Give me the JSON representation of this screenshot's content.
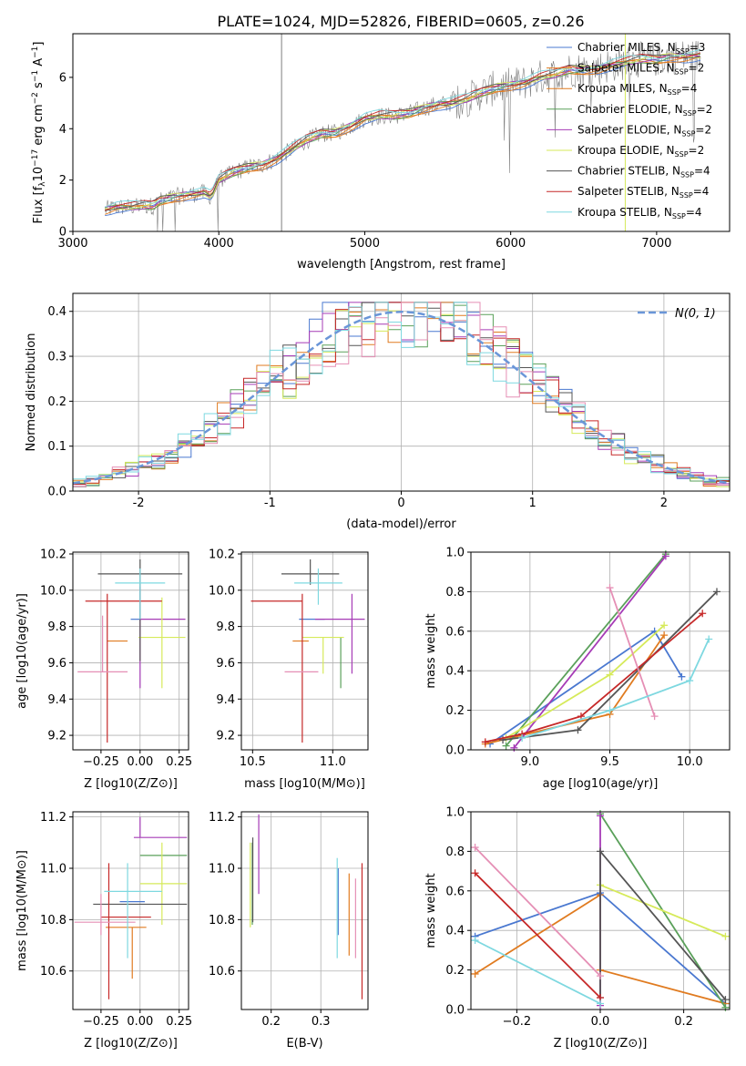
{
  "figure": {
    "title": "PLATE=1024, MJD=52826, FIBERID=0605, z=0.26"
  },
  "model_colors": [
    "#4a78d0",
    "#e07b20",
    "#5aa05a",
    "#a63bb6",
    "#d6ea5a",
    "#555555",
    "#c62828",
    "#e58fb5",
    "#7ed8e0"
  ],
  "chart_data": [
    {
      "id": "spectrum",
      "type": "line",
      "xlabel": "wavelength [Angstrom, rest frame]",
      "ylabel": "Flux [f$_\\lambda$10$^{-17}$ erg cm$^{-2}$ s$^{-1}$ A$^{-1}$]",
      "ylabel_parts": {
        "a": "Flux [f",
        "b": "λ",
        "c": "10",
        "d": "−17",
        "e": " erg cm",
        "f": "−2",
        "g": " s",
        "h": "−1",
        "i": " A",
        "j": "−1",
        "k": "]"
      },
      "xlim": [
        3000,
        7500
      ],
      "ylim": [
        0,
        7.7
      ],
      "xticks": [
        3000,
        4000,
        5000,
        6000,
        7000
      ],
      "yticks": [
        0,
        2,
        4,
        6
      ],
      "grid": false,
      "legend_position": "top-right",
      "legend": [
        {
          "label": "Chabrier MILES, N",
          "n": "3",
          "color": "#4a78d0"
        },
        {
          "label": "Salpeter MILES, N",
          "n": "2",
          "color": "#e07b20"
        },
        {
          "label": "Kroupa MILES, N",
          "n": "4",
          "color": "#e07b20"
        },
        {
          "label": "Chabrier ELODIE, N",
          "n": "2",
          "color": "#5aa05a"
        },
        {
          "label": "Salpeter ELODIE, N",
          "n": "2",
          "color": "#a63bb6"
        },
        {
          "label": "Kroupa ELODIE, N",
          "n": "2",
          "color": "#d6ea5a"
        },
        {
          "label": "Chabrier STELIB, N",
          "n": "4",
          "color": "#555555"
        },
        {
          "label": "Salpeter STELIB, N",
          "n": "4",
          "color": "#c62828"
        },
        {
          "label": "Kroupa STELIB, N",
          "n": "4",
          "color": "#7ed8e0"
        }
      ],
      "legend_sub": "SSP",
      "data_curve": {
        "x": [
          3220,
          3300,
          3400,
          3500,
          3550,
          3600,
          3700,
          3800,
          3900,
          3950,
          4000,
          4100,
          4200,
          4300,
          4400,
          4500,
          4600,
          4700,
          4800,
          4900,
          5000,
          5100,
          5200,
          5300,
          5400,
          5500,
          5600,
          5700,
          5800,
          5900,
          6000,
          6100,
          6200,
          6300,
          6400,
          6500,
          6600,
          6700,
          6800,
          6900,
          7000,
          7100,
          7200,
          7300
        ],
        "y": [
          0.85,
          0.95,
          0.95,
          1.0,
          1.0,
          1.2,
          1.35,
          1.45,
          1.5,
          1.35,
          2.0,
          2.3,
          2.5,
          2.6,
          2.85,
          3.2,
          3.55,
          3.8,
          3.85,
          4.1,
          4.4,
          4.5,
          4.5,
          4.6,
          4.8,
          4.95,
          5.0,
          5.15,
          5.4,
          5.6,
          5.7,
          5.8,
          6.0,
          6.1,
          6.3,
          6.3,
          6.35,
          6.5,
          6.6,
          6.7,
          6.7,
          6.8,
          6.8,
          6.85
        ]
      }
    },
    {
      "id": "residuals",
      "type": "line",
      "xlabel": "(data-model)/error",
      "ylabel": "Normed distribution",
      "xlim": [
        -2.5,
        2.5
      ],
      "ylim": [
        0,
        0.44
      ],
      "xticks": [
        -2,
        -1,
        0,
        1,
        2
      ],
      "yticks": [
        0.0,
        0.1,
        0.2,
        0.3,
        0.4
      ],
      "grid": true,
      "legend_position": "top-right",
      "legend_label": "N(0, 1)",
      "gaussian": {
        "mu": 0,
        "sigma": 1,
        "color": "#6a96d8"
      }
    },
    {
      "id": "z_age",
      "type": "scatter",
      "xlabel": "Z [log10(Z/Z⊙)]",
      "ylabel": "age [log10(age/yr)]",
      "xlim": [
        -0.43,
        0.31
      ],
      "ylim": [
        9.12,
        10.21
      ],
      "xticks": [
        -0.25,
        0.0,
        0.25
      ],
      "xtick_labels": [
        "−0.25",
        "0.00",
        "0.25"
      ],
      "yticks": [
        9.2,
        9.4,
        9.6,
        9.8,
        10.0,
        10.2
      ],
      "grid": true,
      "points": [
        {
          "x": 0.0,
          "y": 9.84,
          "xerr": [
            0.06,
            0.0
          ],
          "yerr": [
            0.0,
            0.0
          ],
          "color": "#4a78d0"
        },
        {
          "x": -0.15,
          "y": 9.72,
          "xerr": [
            0.06,
            0.07
          ],
          "yerr": [
            0.0,
            0.0
          ],
          "color": "#e07b20"
        },
        {
          "x": -0.05,
          "y": 9.84,
          "xerr": [
            0.0,
            0.0
          ],
          "yerr": [
            0.0,
            0.0
          ],
          "color": "#5aa05a"
        },
        {
          "x": 0.0,
          "y": 9.84,
          "xerr": [
            0.0,
            0.29
          ],
          "yerr": [
            0.38,
            0.18
          ],
          "color": "#a63bb6"
        },
        {
          "x": 0.14,
          "y": 9.74,
          "xerr": [
            0.15,
            0.15
          ],
          "yerr": [
            0.28,
            0.22
          ],
          "color": "#d6ea5a"
        },
        {
          "x": 0.0,
          "y": 10.09,
          "xerr": [
            0.27,
            0.27
          ],
          "yerr": [
            0.48,
            0.08
          ],
          "color": "#555555"
        },
        {
          "x": -0.21,
          "y": 9.94,
          "xerr": [
            0.14,
            0.35
          ],
          "yerr": [
            0.78,
            0.04
          ],
          "color": "#c62828"
        },
        {
          "x": -0.24,
          "y": 9.55,
          "xerr": [
            0.16,
            0.16
          ],
          "yerr": [
            0.0,
            0.31
          ],
          "color": "#e58fb5"
        },
        {
          "x": 0.0,
          "y": 10.04,
          "xerr": [
            0.16,
            0.16
          ],
          "yerr": [
            0.2,
            0.08
          ],
          "color": "#7ed8e0"
        }
      ]
    },
    {
      "id": "mass_age",
      "type": "scatter",
      "xlabel": "mass [log10(M/M⊙)]",
      "ylabel": "",
      "xlim": [
        10.43,
        11.22
      ],
      "ylim": [
        9.12,
        10.21
      ],
      "xticks": [
        10.5,
        11.0
      ],
      "xtick_labels": [
        "10.5",
        "11.0"
      ],
      "yticks": [
        9.2,
        9.4,
        9.6,
        9.8,
        10.0,
        10.2
      ],
      "grid": true,
      "points": [
        {
          "x": 10.87,
          "y": 9.84,
          "xerr": [
            0.08,
            0.08
          ],
          "yerr": [
            0.0,
            0.0
          ],
          "color": "#4a78d0"
        },
        {
          "x": 10.8,
          "y": 9.72,
          "xerr": [
            0.05,
            0.05
          ],
          "yerr": [
            0.0,
            0.0
          ],
          "color": "#e07b20"
        },
        {
          "x": 11.05,
          "y": 9.74,
          "xerr": [
            0.0,
            0.0
          ],
          "yerr": [
            0.28,
            0.0
          ],
          "color": "#5aa05a"
        },
        {
          "x": 11.12,
          "y": 9.84,
          "xerr": [
            0.23,
            0.08
          ],
          "yerr": [
            0.3,
            0.14
          ],
          "color": "#a63bb6"
        },
        {
          "x": 10.94,
          "y": 9.74,
          "xerr": [
            0.13,
            0.13
          ],
          "yerr": [
            0.2,
            0.0
          ],
          "color": "#d6ea5a"
        },
        {
          "x": 10.86,
          "y": 10.09,
          "xerr": [
            0.18,
            0.18
          ],
          "yerr": [
            0.06,
            0.08
          ],
          "color": "#555555"
        },
        {
          "x": 10.81,
          "y": 9.94,
          "xerr": [
            0.32,
            0.0
          ],
          "yerr": [
            0.78,
            0.04
          ],
          "color": "#c62828"
        },
        {
          "x": 10.77,
          "y": 9.55,
          "xerr": [
            0.07,
            0.14
          ],
          "yerr": [
            0.0,
            0.0
          ],
          "color": "#e58fb5"
        },
        {
          "x": 10.91,
          "y": 10.04,
          "xerr": [
            0.15,
            0.15
          ],
          "yerr": [
            0.12,
            0.08
          ],
          "color": "#7ed8e0"
        }
      ]
    },
    {
      "id": "age_weight",
      "type": "line",
      "xlabel": "age [log10(age/yr)]",
      "ylabel": "mass weight",
      "xlim": [
        8.63,
        10.25
      ],
      "ylim": [
        0,
        1.0
      ],
      "xticks": [
        9.0,
        9.5,
        10.0
      ],
      "xtick_labels": [
        "9.0",
        "9.5",
        "10.0"
      ],
      "yticks": [
        0.0,
        0.2,
        0.4,
        0.6,
        0.8,
        1.0
      ],
      "grid": true,
      "series": [
        {
          "color": "#4a78d0",
          "x": [
            8.75,
            9.78,
            9.95
          ],
          "y": [
            0.03,
            0.6,
            0.37
          ]
        },
        {
          "color": "#e07b20",
          "x": [
            8.72,
            9.5,
            9.84
          ],
          "y": [
            0.03,
            0.18,
            0.58
          ]
        },
        {
          "color": "#5aa05a",
          "x": [
            8.85,
            9.85
          ],
          "y": [
            0.02,
            0.99
          ]
        },
        {
          "color": "#a63bb6",
          "x": [
            8.9,
            9.85
          ],
          "y": [
            0.01,
            0.98
          ]
        },
        {
          "color": "#d6ea5a",
          "x": [
            8.85,
            9.5,
            9.84
          ],
          "y": [
            0.06,
            0.38,
            0.63
          ]
        },
        {
          "color": "#555555",
          "x": [
            8.83,
            9.3,
            10.17
          ],
          "y": [
            0.05,
            0.1,
            0.8
          ]
        },
        {
          "color": "#c62828",
          "x": [
            8.72,
            8.95,
            9.32,
            10.08
          ],
          "y": [
            0.04,
            0.08,
            0.17,
            0.69
          ]
        },
        {
          "color": "#e58fb5",
          "x": [
            9.5,
            9.78
          ],
          "y": [
            0.82,
            0.17
          ]
        },
        {
          "color": "#7ed8e0",
          "x": [
            8.95,
            9.5,
            10.0,
            10.12
          ],
          "y": [
            0.06,
            0.2,
            0.35,
            0.56
          ]
        }
      ]
    },
    {
      "id": "z_mass",
      "type": "scatter",
      "xlabel": "Z [log10(Z/Z⊙)]",
      "ylabel": "mass [log10(M/M⊙)]",
      "xlim": [
        -0.43,
        0.31
      ],
      "ylim": [
        10.45,
        11.22
      ],
      "xticks": [
        -0.25,
        0.0,
        0.25
      ],
      "xtick_labels": [
        "−0.25",
        "0.00",
        "0.25"
      ],
      "yticks": [
        10.6,
        10.8,
        11.0,
        11.2
      ],
      "grid": true,
      "points": [
        {
          "x": -0.05,
          "y": 10.87,
          "xerr": [
            0.08,
            0.08
          ],
          "yerr": [
            0.0,
            0.0
          ],
          "color": "#4a78d0"
        },
        {
          "x": -0.05,
          "y": 10.77,
          "xerr": [
            0.17,
            0.09
          ],
          "yerr": [
            0.2,
            0.0
          ],
          "color": "#e07b20"
        },
        {
          "x": 0.0,
          "y": 11.05,
          "xerr": [
            0.0,
            0.3
          ],
          "yerr": [
            0.0,
            0.0
          ],
          "color": "#5aa05a"
        },
        {
          "x": 0.0,
          "y": 11.12,
          "xerr": [
            0.04,
            0.3
          ],
          "yerr": [
            0.0,
            0.08
          ],
          "color": "#a63bb6"
        },
        {
          "x": 0.14,
          "y": 10.94,
          "xerr": [
            0.14,
            0.16
          ],
          "yerr": [
            0.16,
            0.16
          ],
          "color": "#d6ea5a"
        },
        {
          "x": -0.1,
          "y": 10.86,
          "xerr": [
            0.2,
            0.4
          ],
          "yerr": [
            0.0,
            0.0
          ],
          "color": "#555555"
        },
        {
          "x": -0.2,
          "y": 10.81,
          "xerr": [
            0.05,
            0.27
          ],
          "yerr": [
            0.32,
            0.21
          ],
          "color": "#c62828"
        },
        {
          "x": -0.25,
          "y": 10.79,
          "xerr": [
            0.17,
            0.22
          ],
          "yerr": [
            0.05,
            0.11
          ],
          "color": "#e58fb5"
        },
        {
          "x": -0.08,
          "y": 10.91,
          "xerr": [
            0.15,
            0.22
          ],
          "yerr": [
            0.26,
            0.11
          ],
          "color": "#7ed8e0"
        }
      ]
    },
    {
      "id": "ebv_mass",
      "type": "scatter",
      "xlabel": "E(B-V)",
      "ylabel": "",
      "xlim": [
        0.14,
        0.395
      ],
      "ylim": [
        10.45,
        11.22
      ],
      "xticks": [
        0.2,
        0.3
      ],
      "xtick_labels": [
        "0.2",
        "0.3"
      ],
      "yticks": [
        10.6,
        10.8,
        11.0,
        11.2
      ],
      "grid": true,
      "points": [
        {
          "x": 0.335,
          "y": 10.87,
          "xerr": [
            0,
            0
          ],
          "yerr": [
            0.13,
            0.13
          ],
          "color": "#4a78d0"
        },
        {
          "x": 0.357,
          "y": 10.77,
          "xerr": [
            0,
            0
          ],
          "yerr": [
            0.11,
            0.21
          ],
          "color": "#e07b20"
        },
        {
          "x": 0.162,
          "y": 10.94,
          "xerr": [
            0,
            0
          ],
          "yerr": [
            0.16,
            0.16
          ],
          "color": "#5aa05a"
        },
        {
          "x": 0.175,
          "y": 11.12,
          "xerr": [
            0,
            0
          ],
          "yerr": [
            0.22,
            0.09
          ],
          "color": "#a63bb6"
        },
        {
          "x": 0.158,
          "y": 10.94,
          "xerr": [
            0,
            0
          ],
          "yerr": [
            0.17,
            0.16
          ],
          "color": "#d6ea5a"
        },
        {
          "x": 0.163,
          "y": 10.94,
          "xerr": [
            0,
            0
          ],
          "yerr": [
            0.15,
            0.18
          ],
          "color": "#555555"
        },
        {
          "x": 0.383,
          "y": 10.81,
          "xerr": [
            0,
            0
          ],
          "yerr": [
            0.32,
            0.21
          ],
          "color": "#c62828"
        },
        {
          "x": 0.37,
          "y": 10.77,
          "xerr": [
            0,
            0
          ],
          "yerr": [
            0.12,
            0.19
          ],
          "color": "#e58fb5"
        },
        {
          "x": 0.333,
          "y": 10.87,
          "xerr": [
            0,
            0
          ],
          "yerr": [
            0.22,
            0.17
          ],
          "color": "#7ed8e0"
        }
      ]
    },
    {
      "id": "z_weight",
      "type": "line",
      "xlabel": "Z [log10(Z/Z⊙)]",
      "ylabel": "mass weight",
      "xlim": [
        -0.31,
        0.31
      ],
      "ylim": [
        0,
        1.0
      ],
      "xticks": [
        -0.2,
        0.0,
        0.2
      ],
      "xtick_labels": [
        "−0.2",
        "0.0",
        "0.2"
      ],
      "yticks": [
        0.0,
        0.2,
        0.4,
        0.6,
        0.8,
        1.0
      ],
      "grid": true,
      "series": [
        {
          "color": "#4a78d0",
          "x": [
            -0.3,
            0.0,
            0.3
          ],
          "y": [
            0.37,
            0.59,
            0.03
          ]
        },
        {
          "color": "#e07b20",
          "x": [
            -0.3,
            0.0,
            0.0,
            0.3
          ],
          "y": [
            0.18,
            0.58,
            0.2,
            0.03
          ]
        },
        {
          "color": "#5aa05a",
          "x": [
            0.0,
            0.3
          ],
          "y": [
            0.99,
            0.01
          ]
        },
        {
          "color": "#a63bb6",
          "x": [
            0.0,
            0.0
          ],
          "y": [
            0.98,
            0.02
          ]
        },
        {
          "color": "#d6ea5a",
          "x": [
            0.0,
            0.3
          ],
          "y": [
            0.63,
            0.37
          ]
        },
        {
          "color": "#555555",
          "x": [
            0.0,
            0.0,
            0.3
          ],
          "y": [
            0.06,
            0.8,
            0.05
          ]
        },
        {
          "color": "#c62828",
          "x": [
            -0.3,
            0.0
          ],
          "y": [
            0.69,
            0.06
          ]
        },
        {
          "color": "#e58fb5",
          "x": [
            -0.3,
            0.0
          ],
          "y": [
            0.82,
            0.17
          ]
        },
        {
          "color": "#7ed8e0",
          "x": [
            -0.3,
            0.0
          ],
          "y": [
            0.35,
            0.03
          ]
        }
      ]
    }
  ]
}
